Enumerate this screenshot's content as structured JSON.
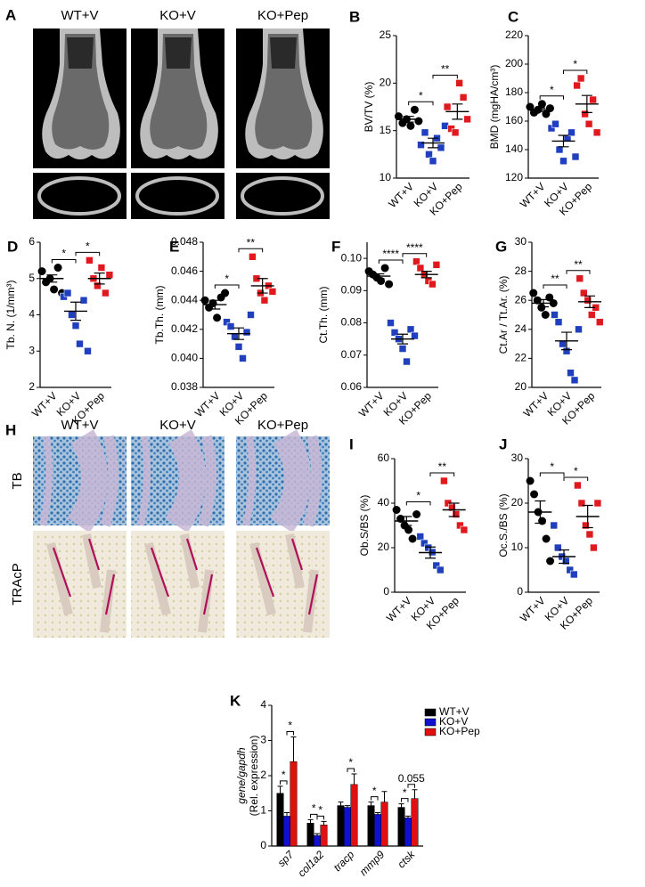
{
  "figure_a": {
    "panel": "A",
    "columns": [
      "WT+V",
      "KO+V",
      "KO+Pep"
    ]
  },
  "figure_h": {
    "panel": "H",
    "columns": [
      "WT+V",
      "KO+V",
      "KO+Pep"
    ],
    "rows": [
      "TB",
      "TRAcP"
    ]
  },
  "chart_data": [
    {
      "type": "dot",
      "panel": "B",
      "ylabel": "BV/TV (%)",
      "categories": [
        "WT+V",
        "KO+V",
        "KO+Pep"
      ],
      "colors": [
        "#000000",
        "#1f3fbf",
        "#e0191f"
      ],
      "markers": [
        "circle",
        "square",
        "square"
      ],
      "points": [
        [
          16.5,
          15.8,
          16.2,
          15.5,
          17.2,
          16.0
        ],
        [
          13.5,
          14.8,
          12.5,
          11.8,
          14.2,
          13.2,
          15.5
        ],
        [
          17.5,
          15.2,
          14.8,
          20.0,
          18.5,
          16.2
        ]
      ],
      "means": [
        16.2,
        13.7,
        17.0
      ],
      "sems": [
        0.3,
        0.5,
        0.8
      ],
      "ylim": [
        10,
        25
      ],
      "yticks": [
        10,
        15,
        20,
        25
      ],
      "annotations": [
        {
          "pair": [
            0,
            1
          ],
          "label": "*"
        },
        {
          "pair": [
            1,
            2
          ],
          "label": "**"
        }
      ]
    },
    {
      "type": "dot",
      "panel": "C",
      "ylabel": "BMD (mgHA/cm³)",
      "categories": [
        "WT+V",
        "KO+V",
        "KO+Pep"
      ],
      "colors": [
        "#000000",
        "#1f3fbf",
        "#e0191f"
      ],
      "markers": [
        "circle",
        "square",
        "square"
      ],
      "points": [
        [
          170,
          166,
          168,
          172,
          165,
          169
        ],
        [
          155,
          158,
          140,
          132,
          148,
          152,
          135
        ],
        [
          185,
          190,
          165,
          158,
          175,
          152
        ]
      ],
      "means": [
        168,
        146,
        172
      ],
      "sems": [
        1.2,
        4,
        6
      ],
      "ylim": [
        120,
        220
      ],
      "yticks": [
        120,
        140,
        160,
        180,
        200,
        220
      ],
      "annotations": [
        {
          "pair": [
            0,
            1
          ],
          "label": "*"
        },
        {
          "pair": [
            1,
            2
          ],
          "label": "*"
        }
      ]
    },
    {
      "type": "dot",
      "panel": "D",
      "ylabel": "Tb. N. (1/mm³)",
      "categories": [
        "WT+V",
        "KO+V",
        "KO+Pep"
      ],
      "colors": [
        "#000000",
        "#1f3fbf",
        "#e0191f"
      ],
      "markers": [
        "circle",
        "square",
        "square"
      ],
      "points": [
        [
          5.2,
          4.9,
          5.0,
          4.7,
          5.3,
          4.6
        ],
        [
          4.5,
          4.6,
          4.0,
          3.7,
          3.2,
          4.4,
          3.0
        ],
        [
          5.5,
          5.0,
          4.8,
          5.3,
          4.6,
          5.1
        ]
      ],
      "means": [
        5.0,
        4.1,
        5.0
      ],
      "sems": [
        0.1,
        0.25,
        0.15
      ],
      "ylim": [
        2,
        6
      ],
      "yticks": [
        2,
        3,
        4,
        5,
        6
      ],
      "annotations": [
        {
          "pair": [
            0,
            1
          ],
          "label": "*"
        },
        {
          "pair": [
            1,
            2
          ],
          "label": "*"
        }
      ]
    },
    {
      "type": "dot",
      "panel": "E",
      "ylabel": "Tb.Th. (mm)",
      "categories": [
        "WT+V",
        "KO+V",
        "KO+Pep"
      ],
      "colors": [
        "#000000",
        "#1f3fbf",
        "#e0191f"
      ],
      "markers": [
        "circle",
        "square",
        "square"
      ],
      "points": [
        [
          0.044,
          0.0435,
          0.0438,
          0.0428,
          0.0442,
          0.0445
        ],
        [
          0.0425,
          0.0422,
          0.0415,
          0.0408,
          0.04,
          0.0418,
          0.043
        ],
        [
          0.047,
          0.0455,
          0.0445,
          0.044,
          0.045,
          0.0446
        ]
      ],
      "means": [
        0.0437,
        0.0417,
        0.045
      ],
      "sems": [
        0.0003,
        0.0004,
        0.0005
      ],
      "ylim": [
        0.038,
        0.048
      ],
      "yticks": [
        0.038,
        {
          "value": 0.04,
          "label": "0.040"
        },
        0.042,
        0.044,
        0.046,
        0.048
      ],
      "annotations": [
        {
          "pair": [
            0,
            1
          ],
          "label": "*"
        },
        {
          "pair": [
            1,
            2
          ],
          "label": "**"
        }
      ]
    },
    {
      "type": "dot",
      "panel": "F",
      "ylabel": "Ct.Th. (mm)",
      "categories": [
        "WT+V",
        "KO+V",
        "KO+Pep"
      ],
      "colors": [
        "#000000",
        "#1f3fbf",
        "#e0191f"
      ],
      "markers": [
        "circle",
        "square",
        "square"
      ],
      "points": [
        [
          0.096,
          0.095,
          0.094,
          0.093,
          0.097,
          0.092
        ],
        [
          0.08,
          0.077,
          0.075,
          0.072,
          0.068,
          0.078,
          0.076
        ],
        [
          0.099,
          0.097,
          0.095,
          0.093,
          0.092,
          0.098
        ]
      ],
      "means": [
        0.0945,
        0.075,
        0.095
      ],
      "sems": [
        0.0007,
        0.0015,
        0.001
      ],
      "ylim": [
        0.06,
        0.105
      ],
      "yticks": [
        0.06,
        0.07,
        0.08,
        0.09,
        {
          "value": 0.1,
          "label": "0.10"
        }
      ],
      "annotations": [
        {
          "pair": [
            0,
            1
          ],
          "label": "****"
        },
        {
          "pair": [
            1,
            2
          ],
          "label": "****"
        }
      ]
    },
    {
      "type": "dot",
      "panel": "G",
      "ylabel": "Ct.Ar / Tt.Ar. (%)",
      "categories": [
        "WT+V",
        "KO+V",
        "KO+Pep"
      ],
      "colors": [
        "#000000",
        "#1f3fbf",
        "#e0191f"
      ],
      "markers": [
        "circle",
        "square",
        "square"
      ],
      "points": [
        [
          26.5,
          26.0,
          25.5,
          25.0,
          26.2,
          25.8
        ],
        [
          25.0,
          24.5,
          23.0,
          22.5,
          21.0,
          20.5,
          24.0
        ],
        [
          27.5,
          26.5,
          26.0,
          25.0,
          25.5,
          24.5
        ]
      ],
      "means": [
        25.8,
        23.2,
        25.9
      ],
      "sems": [
        0.25,
        0.6,
        0.4
      ],
      "ylim": [
        20,
        30
      ],
      "yticks": [
        20,
        22,
        24,
        26,
        28,
        30
      ],
      "annotations": [
        {
          "pair": [
            0,
            1
          ],
          "label": "**"
        },
        {
          "pair": [
            1,
            2
          ],
          "label": "**"
        }
      ]
    },
    {
      "type": "dot",
      "panel": "I",
      "ylabel": "Ob.S/BS (%)",
      "categories": [
        "WT+V",
        "KO+V",
        "KO+Pep"
      ],
      "colors": [
        "#000000",
        "#1f3fbf",
        "#e0191f"
      ],
      "markers": [
        "circle",
        "square",
        "square"
      ],
      "points": [
        [
          37,
          33,
          30,
          28,
          24,
          35
        ],
        [
          25,
          22,
          20,
          18,
          12,
          10
        ],
        [
          50,
          40,
          38,
          35,
          30,
          28
        ]
      ],
      "means": [
        32,
        17.8,
        37
      ],
      "sems": [
        2,
        2.5,
        3
      ],
      "ylim": [
        0,
        60
      ],
      "yticks": [
        0,
        20,
        40,
        60
      ],
      "annotations": [
        {
          "pair": [
            0,
            1
          ],
          "label": "*"
        },
        {
          "pair": [
            1,
            2
          ],
          "label": "**"
        }
      ]
    },
    {
      "type": "dot",
      "panel": "J",
      "ylabel": "Oc.S./BS (%)",
      "categories": [
        "WT+V",
        "KO+V",
        "KO+Pep"
      ],
      "colors": [
        "#000000",
        "#1f3fbf",
        "#e0191f"
      ],
      "markers": [
        "circle",
        "square",
        "square"
      ],
      "points": [
        [
          25,
          22,
          18,
          16,
          12,
          7
        ],
        [
          15,
          10,
          8,
          7,
          5,
          4
        ],
        [
          24,
          20,
          15,
          13,
          10,
          20
        ]
      ],
      "means": [
        18,
        8,
        17
      ],
      "sems": [
        2.5,
        1.5,
        2.5
      ],
      "ylim": [
        0,
        30
      ],
      "yticks": [
        0,
        10,
        20,
        30
      ],
      "annotations": [
        {
          "pair": [
            0,
            1
          ],
          "label": "*"
        },
        {
          "pair": [
            1,
            2
          ],
          "label": "*"
        }
      ]
    },
    {
      "type": "bar",
      "panel": "K",
      "ylabel": [
        "gene/gapdh",
        "(Rel. expression)"
      ],
      "categories": [
        "sp7",
        "col1a2",
        "tracp",
        "mmp9",
        "ctsk"
      ],
      "series": [
        {
          "name": "WT+V",
          "color": "#000000",
          "values": [
            1.5,
            0.65,
            1.15,
            1.15,
            1.1
          ],
          "errors": [
            0.2,
            0.1,
            0.1,
            0.1,
            0.1
          ]
        },
        {
          "name": "KO+V",
          "color": "#1010d0",
          "values": [
            0.85,
            0.3,
            1.1,
            0.9,
            0.8
          ],
          "errors": [
            0.1,
            0.05,
            0.05,
            0.05,
            0.05
          ]
        },
        {
          "name": "KO+Pep",
          "color": "#e01010",
          "values": [
            2.4,
            0.6,
            1.75,
            1.25,
            1.35
          ],
          "errors": [
            0.7,
            0.1,
            0.3,
            0.3,
            0.25
          ]
        }
      ],
      "ylim": [
        0,
        4
      ],
      "yticks": [
        0,
        1,
        2,
        3,
        4
      ],
      "legend": "upper right",
      "annotations": [
        {
          "category": 0,
          "pair": [
            0,
            1
          ],
          "label": "*"
        },
        {
          "category": 0,
          "pair": [
            1,
            2
          ],
          "label": "*"
        },
        {
          "category": 1,
          "pair": [
            0,
            1
          ],
          "label": "*"
        },
        {
          "category": 1,
          "pair": [
            1,
            2
          ],
          "label": "*"
        },
        {
          "category": 2,
          "pair": [
            1,
            2
          ],
          "label": "*"
        },
        {
          "category": 3,
          "pair": [
            0,
            1
          ],
          "label": "*"
        },
        {
          "category": 4,
          "pair": [
            0,
            1
          ],
          "label": "*"
        },
        {
          "category": 4,
          "pair": [
            1,
            2
          ],
          "label": "0.055"
        }
      ]
    }
  ]
}
